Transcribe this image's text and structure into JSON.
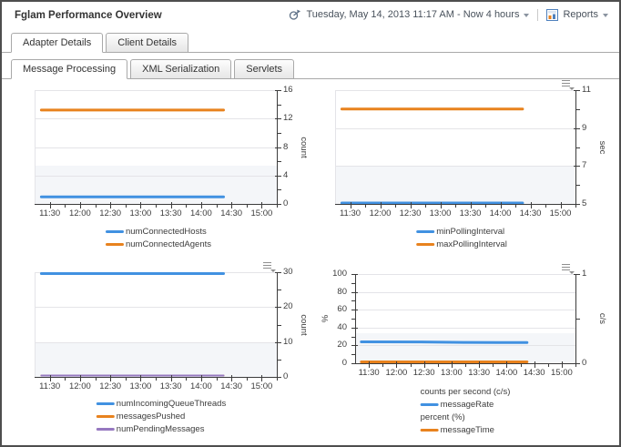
{
  "header": {
    "title": "Fglam Performance Overview",
    "time_range": "Tuesday, May 14, 2013 11:17 AM - Now 4 hours",
    "reports_label": "Reports"
  },
  "tabs_primary": [
    {
      "label": "Adapter Details",
      "active": true
    },
    {
      "label": "Client Details",
      "active": false
    }
  ],
  "tabs_secondary": [
    {
      "label": "Message Processing",
      "active": true
    },
    {
      "label": "XML Serialization",
      "active": false
    },
    {
      "label": "Servlets",
      "active": false
    }
  ],
  "colors": {
    "blue": "#4191E1",
    "orange": "#E8821E",
    "purple": "#9678C0",
    "axis": "#3c3c3c",
    "grid": "#e4e4e8",
    "band": "#f4f6f9",
    "tab_border": "#a9a9a9",
    "frame_border": "#4e4e4e",
    "report_icon_blue": "#4f81bd"
  },
  "chart_data": [
    {
      "id": "connected-hosts-agents",
      "type": "line",
      "x_labels": [
        "11:30",
        "12:00",
        "12:30",
        "13:00",
        "13:30",
        "14:00",
        "14:30",
        "15:00"
      ],
      "x_range": "11:15 - 15:15",
      "y_axis": {
        "min": 0,
        "max": 16,
        "majors": [
          0,
          4,
          8,
          12,
          16
        ],
        "minor_step": 2,
        "unit": "count",
        "side": "right"
      },
      "band_fraction": 0.3333,
      "has_options_icon": false,
      "series": [
        {
          "name": "numConnectedHosts",
          "color": "#4191E1",
          "width": 3,
          "points": [
            [
              0.028,
              1
            ],
            [
              0.78,
              1
            ]
          ]
        },
        {
          "name": "numConnectedAgents",
          "color": "#E8821E",
          "width": 3,
          "points": [
            [
              0.028,
              13.2
            ],
            [
              0.78,
              13.2
            ]
          ]
        }
      ],
      "legend": [
        {
          "swatch": "#4191E1",
          "label": "numConnectedHosts"
        },
        {
          "swatch": "#E8821E",
          "label": "numConnectedAgents"
        }
      ]
    },
    {
      "id": "polling-interval",
      "type": "line",
      "x_labels": [
        "11:30",
        "12:00",
        "12:30",
        "13:00",
        "13:30",
        "14:00",
        "14:30",
        "15:00"
      ],
      "x_range": "11:15 - 15:15",
      "y_axis": {
        "min": 5,
        "max": 11,
        "majors": [
          5,
          7,
          9,
          11
        ],
        "minor_step": 1,
        "unit": "sec",
        "side": "right"
      },
      "band_fraction": 0.3333,
      "has_options_icon": true,
      "series": [
        {
          "name": "minPollingInterval",
          "color": "#4191E1",
          "width": 3,
          "points": [
            [
              0.028,
              5.05
            ],
            [
              0.78,
              5.05
            ]
          ]
        },
        {
          "name": "maxPollingInterval",
          "color": "#E8821E",
          "width": 3,
          "points": [
            [
              0.028,
              10
            ],
            [
              0.78,
              10
            ]
          ]
        }
      ],
      "legend": [
        {
          "swatch": "#4191E1",
          "label": "minPollingInterval"
        },
        {
          "swatch": "#E8821E",
          "label": "maxPollingInterval"
        }
      ]
    },
    {
      "id": "queue-messages",
      "type": "line",
      "x_labels": [
        "11:30",
        "12:00",
        "12:30",
        "13:00",
        "13:30",
        "14:00",
        "14:30",
        "15:00"
      ],
      "x_range": "11:15 - 15:15",
      "y_axis": {
        "min": 0,
        "max": 30,
        "majors": [
          0,
          10,
          20,
          30
        ],
        "minor_step": 5,
        "unit": "count",
        "side": "right"
      },
      "band_fraction": 0.3333,
      "has_options_icon": true,
      "series": [
        {
          "name": "numIncomingQueueThreads",
          "color": "#4191E1",
          "width": 3,
          "points": [
            [
              0.028,
              29.6
            ],
            [
              0.78,
              29.6
            ]
          ]
        },
        {
          "name": "messagesPushed",
          "color": "#E8821E",
          "width": 2,
          "points": [
            [
              0.028,
              0.4
            ],
            [
              0.78,
              0.4
            ]
          ]
        },
        {
          "name": "numPendingMessages",
          "color": "#9678C0",
          "width": 2,
          "points": [
            [
              0.028,
              0.4
            ],
            [
              0.78,
              0.4
            ]
          ]
        }
      ],
      "legend": [
        {
          "swatch": "#4191E1",
          "label": "numIncomingQueueThreads"
        },
        {
          "swatch": "#E8821E",
          "label": "messagesPushed"
        },
        {
          "swatch": "#9678C0",
          "label": "numPendingMessages"
        }
      ]
    },
    {
      "id": "message-rate-time",
      "type": "line",
      "x_labels": [
        "11:30",
        "12:00",
        "12:30",
        "13:00",
        "13:30",
        "14:00",
        "14:30",
        "15:00"
      ],
      "x_range": "11:15 - 15:15",
      "y_axis": {
        "min": 0,
        "max": 100,
        "majors": [
          0,
          20,
          40,
          60,
          80,
          100
        ],
        "minor_step": 10,
        "unit": "%",
        "side": "left"
      },
      "y_axis_right": {
        "min": 0,
        "max": 1,
        "majors": [
          0,
          1
        ],
        "minor_step": 0.5,
        "unit": "c/s"
      },
      "band_fraction": 0.3333,
      "has_options_icon": true,
      "series": [
        {
          "name": "messageRate",
          "color": "#4191E1",
          "width": 3,
          "points": [
            [
              0.028,
              24
            ],
            [
              0.3,
              23.9
            ],
            [
              0.5,
              23.4
            ],
            [
              0.65,
              23.2
            ],
            [
              0.78,
              23.2
            ]
          ]
        },
        {
          "name": "messageTime",
          "color": "#E8821E",
          "width": 3,
          "points": [
            [
              0.028,
              1.5
            ],
            [
              0.78,
              1.5
            ]
          ]
        }
      ],
      "legend": [
        {
          "label": "counts per second (c/s)"
        },
        {
          "swatch": "#4191E1",
          "label": "messageRate"
        },
        {
          "label": "percent (%)"
        },
        {
          "swatch": "#E8821E",
          "label": "messageTime"
        }
      ]
    }
  ]
}
